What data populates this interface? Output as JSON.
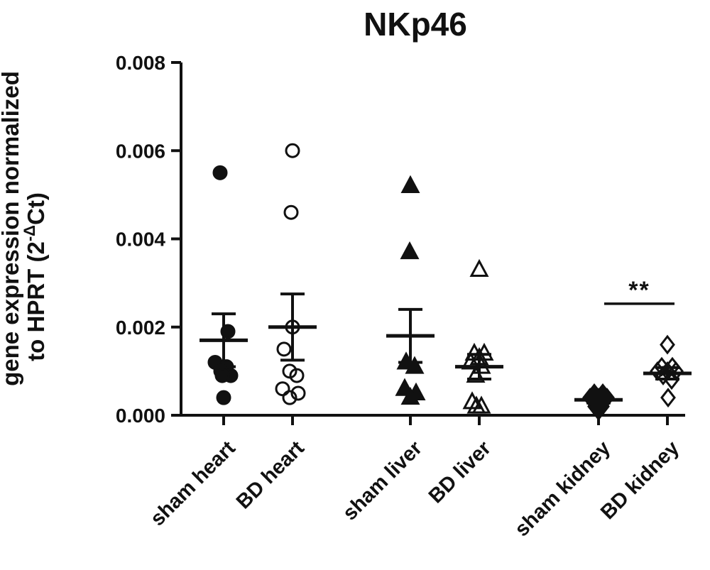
{
  "figure": {
    "title": "NKp46",
    "ink_color": "#111111",
    "background_color": "#ffffff"
  },
  "chart_data": {
    "type": "scatter",
    "title": "NKp46",
    "ylabel": {
      "line1": "gene expression normalized",
      "line2_prefix": "to HPRT (2",
      "line2_sup": "-Δ",
      "line2_rest": "Ct)"
    },
    "ylim": [
      0,
      0.008
    ],
    "grid": false,
    "legend": "none",
    "ytick_values": [
      0,
      0.002,
      0.004,
      0.006,
      0.008
    ],
    "yticks": [
      "0.000",
      "0.002",
      "0.004",
      "0.006",
      "0.008"
    ],
    "groups": [
      {
        "label": "sham heart",
        "marker": "circle-filled",
        "mean": 0.0017,
        "err_low": 0.0011,
        "err_high": 0.0023,
        "points": [
          {
            "v": 0.0055,
            "dx": -5
          },
          {
            "v": 0.0019,
            "dx": 6
          },
          {
            "v": 0.0012,
            "dx": -12
          },
          {
            "v": 0.0011,
            "dx": 4
          },
          {
            "v": 0.001,
            "dx": -4
          },
          {
            "v": 0.0009,
            "dx": 10
          },
          {
            "v": 0.0009,
            "dx": -2
          },
          {
            "v": 0.0004,
            "dx": 0
          }
        ]
      },
      {
        "label": "BD heart",
        "marker": "circle-open",
        "mean": 0.002,
        "err_low": 0.00125,
        "err_high": 0.00275,
        "points": [
          {
            "v": 0.006,
            "dx": 0
          },
          {
            "v": 0.0046,
            "dx": -2
          },
          {
            "v": 0.002,
            "dx": 0
          },
          {
            "v": 0.0015,
            "dx": -12
          },
          {
            "v": 0.001,
            "dx": -4
          },
          {
            "v": 0.0009,
            "dx": 6
          },
          {
            "v": 0.0006,
            "dx": -14
          },
          {
            "v": 0.0005,
            "dx": 8
          },
          {
            "v": 0.0004,
            "dx": -4
          }
        ]
      },
      {
        "label": "sham liver",
        "marker": "triangle-filled",
        "mean": 0.0018,
        "err_low": 0.0012,
        "err_high": 0.0024,
        "points": [
          {
            "v": 0.0052,
            "dx": 0
          },
          {
            "v": 0.0037,
            "dx": -1
          },
          {
            "v": 0.0012,
            "dx": -6
          },
          {
            "v": 0.0011,
            "dx": 6
          },
          {
            "v": 0.0006,
            "dx": -8
          },
          {
            "v": 0.0005,
            "dx": 8
          },
          {
            "v": 0.0004,
            "dx": 0
          }
        ]
      },
      {
        "label": "BD liver",
        "marker": "triangle-open",
        "mean": 0.0011,
        "err_low": 0.00082,
        "err_high": 0.00138,
        "points": [
          {
            "v": 0.0033,
            "dx": 0
          },
          {
            "v": 0.0014,
            "dx": -7
          },
          {
            "v": 0.0014,
            "dx": 7
          },
          {
            "v": 0.0013,
            "dx": 0
          },
          {
            "v": 0.0012,
            "dx": -12
          },
          {
            "v": 0.0011,
            "dx": 3
          },
          {
            "v": 0.0009,
            "dx": -5
          },
          {
            "v": 0.0003,
            "dx": -10
          },
          {
            "v": 0.0002,
            "dx": 3
          },
          {
            "v": 0.0002,
            "dx": -4
          }
        ]
      },
      {
        "label": "sham kidney",
        "marker": "diamond-filled",
        "mean": 0.00035,
        "err_low": 0.00028,
        "err_high": 0.00042,
        "points": [
          {
            "v": 0.0005,
            "dx": -6
          },
          {
            "v": 0.0005,
            "dx": 6
          },
          {
            "v": 0.0004,
            "dx": -12
          },
          {
            "v": 0.0004,
            "dx": 0
          },
          {
            "v": 0.0004,
            "dx": 12
          },
          {
            "v": 0.0002,
            "dx": -5
          },
          {
            "v": 0.0002,
            "dx": 5
          },
          {
            "v": 0.0001,
            "dx": 0
          }
        ]
      },
      {
        "label": "BD kidney",
        "marker": "diamond-open",
        "mean": 0.00095,
        "err_low": 0.00082,
        "err_high": 0.00108,
        "points": [
          {
            "v": 0.0016,
            "dx": 0
          },
          {
            "v": 0.0011,
            "dx": -8
          },
          {
            "v": 0.0011,
            "dx": 7
          },
          {
            "v": 0.001,
            "dx": -14
          },
          {
            "v": 0.001,
            "dx": 0
          },
          {
            "v": 0.001,
            "dx": 12
          },
          {
            "v": 0.0009,
            "dx": -6
          },
          {
            "v": 0.0008,
            "dx": 6
          },
          {
            "v": 0.0004,
            "dx": 1
          }
        ]
      }
    ],
    "significance": {
      "label": "**",
      "between": [
        "sham kidney",
        "BD kidney"
      ],
      "bar_y_value": 0.00253
    }
  }
}
